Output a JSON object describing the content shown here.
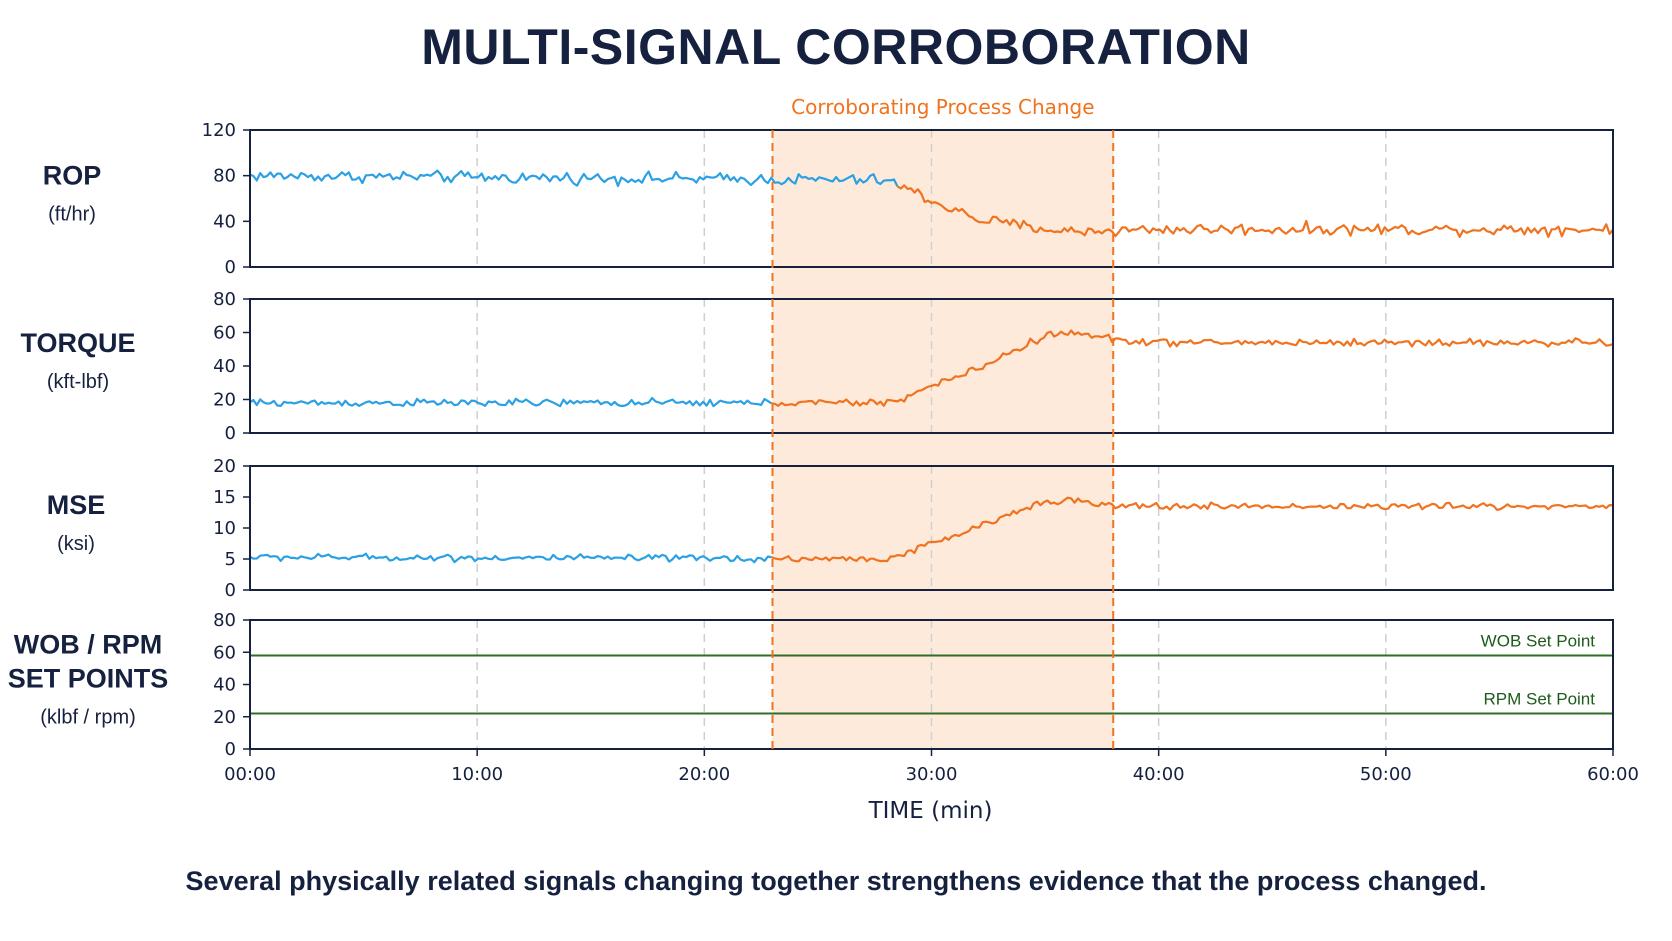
{
  "title": "MULTI-SIGNAL CORROBORATION",
  "footer": "Several physically related signals changing together strengthens evidence that the process changed.",
  "colors": {
    "before": "#2ba0e4",
    "after": "#f0731f",
    "band_fill": "#fdeadb",
    "band_edge": "#f0731f",
    "setpoint": "#2f6e26",
    "frame": "#15213f",
    "grid": "#cfcfcf"
  },
  "chart_data": {
    "type": "line",
    "xlabel": "TIME (min)",
    "xlim": [
      0,
      60
    ],
    "x_ticks": [
      0,
      10,
      20,
      30,
      40,
      50,
      60
    ],
    "x_tick_labels": [
      "00:00",
      "10:00",
      "20:00",
      "30:00",
      "40:00",
      "50:00",
      "60:00"
    ],
    "highlight": {
      "label": "Corroborating Process Change",
      "start": 23,
      "end": 38
    },
    "panels": [
      {
        "id": "rop",
        "title_lines": [
          "ROP"
        ],
        "unit": "(ft/hr)",
        "ylim": [
          0,
          120
        ],
        "y_ticks": [
          0,
          40,
          80,
          120
        ],
        "color_switch_x": 28.5,
        "profile": [
          [
            0,
            80
          ],
          [
            28,
            76
          ],
          [
            29,
            68
          ],
          [
            30,
            58
          ],
          [
            32,
            42
          ],
          [
            34,
            36
          ],
          [
            36,
            31
          ],
          [
            38,
            32
          ],
          [
            40,
            33
          ],
          [
            60,
            33
          ]
        ],
        "noise": 5
      },
      {
        "id": "torque",
        "title_lines": [
          "TORQUE"
        ],
        "unit": "(kft-lbf)",
        "ylim": [
          0,
          80
        ],
        "y_ticks": [
          0,
          20,
          40,
          60,
          80
        ],
        "color_switch_x": 23,
        "profile": [
          [
            0,
            18
          ],
          [
            28,
            18
          ],
          [
            29,
            22
          ],
          [
            30,
            28
          ],
          [
            32,
            38
          ],
          [
            33,
            45
          ],
          [
            35,
            58
          ],
          [
            36,
            60
          ],
          [
            38,
            56
          ],
          [
            40,
            54
          ],
          [
            60,
            54
          ]
        ],
        "noise": 2.2
      },
      {
        "id": "mse",
        "title_lines": [
          "MSE"
        ],
        "unit": "(ksi)",
        "ylim": [
          0,
          20
        ],
        "y_ticks": [
          0,
          5,
          10,
          15,
          20
        ],
        "color_switch_x": 23,
        "profile": [
          [
            0,
            5.3
          ],
          [
            28,
            5.0
          ],
          [
            29,
            6.0
          ],
          [
            30,
            7.5
          ],
          [
            32,
            10
          ],
          [
            33,
            11.5
          ],
          [
            35,
            14.5
          ],
          [
            36,
            14.5
          ],
          [
            38,
            13.5
          ],
          [
            40,
            13.5
          ],
          [
            60,
            13.5
          ]
        ],
        "noise": 0.55
      },
      {
        "id": "setpoints",
        "title_lines": [
          "WOB / RPM",
          "SET POINTS"
        ],
        "unit": "(klbf / rpm)",
        "ylim": [
          0,
          80
        ],
        "y_ticks": [
          0,
          20,
          40,
          60,
          80
        ],
        "setpoints": [
          {
            "name": "WOB Set Point",
            "value": 58
          },
          {
            "name": "RPM Set Point",
            "value": 22
          }
        ]
      }
    ]
  }
}
